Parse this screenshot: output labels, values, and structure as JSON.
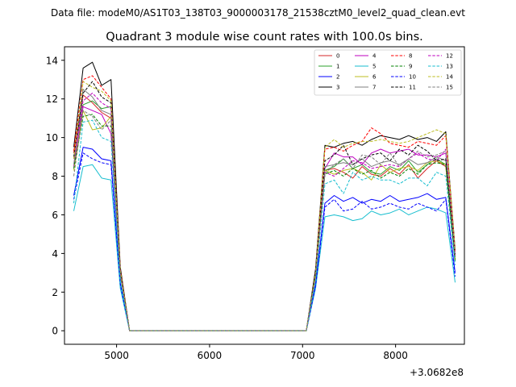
{
  "figure": {
    "suptitle": "Data file: modeM0/AS1T03_138T03_9000003178_21538cztM0_level2_quad_clean.evt"
  },
  "chart_data": {
    "type": "line",
    "title": "Quadrant 3 module wise count rates with 100.0s bins.",
    "xlabel": "",
    "ylabel": "",
    "x_offset_label": "+3.0682e8",
    "xlim": [
      4440,
      8740
    ],
    "ylim": [
      -0.7,
      14.7
    ],
    "x_ticks": [
      5000,
      6000,
      7000,
      8000
    ],
    "x_tick_labels": [
      "5000",
      "6000",
      "7000",
      "8000"
    ],
    "y_ticks": [
      0,
      2,
      4,
      6,
      8,
      10,
      12,
      14
    ],
    "y_tick_labels": [
      "0",
      "2",
      "4",
      "6",
      "8",
      "10",
      "12",
      "14"
    ],
    "grid": false,
    "legend_position": "top-right",
    "x": [
      4540,
      4640,
      4740,
      4840,
      4940,
      5040,
      5140,
      5240,
      5340,
      5440,
      5540,
      5640,
      5740,
      5840,
      5940,
      6040,
      6140,
      6240,
      6340,
      6440,
      6540,
      6640,
      6740,
      6840,
      6940,
      7040,
      7140,
      7240,
      7340,
      7440,
      7540,
      7640,
      7740,
      7840,
      7940,
      8040,
      8140,
      8240,
      8340,
      8440,
      8540,
      8640
    ],
    "series": [
      {
        "name": "0",
        "color": "#d62728",
        "dash": "solid",
        "values": [
          9.2,
          12.2,
          11.8,
          11.3,
          11.0,
          3.0,
          0,
          0,
          0,
          0,
          0,
          0,
          0,
          0,
          0,
          0,
          0,
          0,
          0,
          0,
          0,
          0,
          0,
          0,
          0,
          0,
          2.8,
          8.3,
          8.4,
          8.2,
          7.9,
          8.5,
          8.1,
          8.0,
          8.4,
          8.1,
          8.6,
          7.9,
          8.4,
          8.8,
          8.5,
          3.6
        ]
      },
      {
        "name": "1",
        "color": "#2ca02c",
        "dash": "solid",
        "values": [
          9.0,
          11.7,
          11.9,
          11.5,
          11.6,
          3.1,
          0,
          0,
          0,
          0,
          0,
          0,
          0,
          0,
          0,
          0,
          0,
          0,
          0,
          0,
          0,
          0,
          0,
          0,
          0,
          0,
          2.9,
          8.3,
          8.5,
          8.9,
          8.4,
          8.6,
          8.2,
          8.1,
          8.5,
          8.3,
          8.8,
          8.2,
          8.6,
          8.9,
          8.6,
          3.7
        ]
      },
      {
        "name": "2",
        "color": "#0000ff",
        "dash": "solid",
        "values": [
          7.0,
          9.5,
          9.4,
          8.9,
          8.8,
          2.5,
          0,
          0,
          0,
          0,
          0,
          0,
          0,
          0,
          0,
          0,
          0,
          0,
          0,
          0,
          0,
          0,
          0,
          0,
          0,
          0,
          2.4,
          6.6,
          7.0,
          6.7,
          6.9,
          6.6,
          6.8,
          6.7,
          7.0,
          6.7,
          6.8,
          6.9,
          7.1,
          6.8,
          6.9,
          3.0
        ]
      },
      {
        "name": "3",
        "color": "#000000",
        "dash": "solid",
        "values": [
          9.5,
          13.6,
          13.9,
          12.7,
          13.0,
          3.3,
          0,
          0,
          0,
          0,
          0,
          0,
          0,
          0,
          0,
          0,
          0,
          0,
          0,
          0,
          0,
          0,
          0,
          0,
          0,
          0,
          3.2,
          9.6,
          9.5,
          9.7,
          9.8,
          9.6,
          9.9,
          10.1,
          10.0,
          9.9,
          10.1,
          9.9,
          10.0,
          9.8,
          10.3,
          4.2
        ]
      },
      {
        "name": "4",
        "color": "#bf00bf",
        "dash": "solid",
        "values": [
          8.5,
          11.6,
          11.4,
          11.2,
          10.2,
          2.9,
          0,
          0,
          0,
          0,
          0,
          0,
          0,
          0,
          0,
          0,
          0,
          0,
          0,
          0,
          0,
          0,
          0,
          0,
          0,
          0,
          2.8,
          8.4,
          9.2,
          9.0,
          9.0,
          8.6,
          9.2,
          9.4,
          9.2,
          9.3,
          9.4,
          9.1,
          9.1,
          9.0,
          9.2,
          3.8
        ]
      },
      {
        "name": "5",
        "color": "#17becf",
        "dash": "solid",
        "values": [
          6.2,
          8.5,
          8.6,
          7.9,
          7.8,
          2.2,
          0,
          0,
          0,
          0,
          0,
          0,
          0,
          0,
          0,
          0,
          0,
          0,
          0,
          0,
          0,
          0,
          0,
          0,
          0,
          0,
          2.2,
          5.9,
          6.0,
          5.9,
          5.7,
          5.8,
          6.2,
          6.0,
          6.1,
          6.3,
          6.0,
          6.2,
          6.4,
          6.3,
          6.1,
          2.5
        ]
      },
      {
        "name": "6",
        "color": "#bcbd22",
        "dash": "solid",
        "values": [
          8.3,
          11.4,
          10.4,
          10.5,
          11.1,
          3.0,
          0,
          0,
          0,
          0,
          0,
          0,
          0,
          0,
          0,
          0,
          0,
          0,
          0,
          0,
          0,
          0,
          0,
          0,
          0,
          0,
          2.8,
          8.3,
          8.1,
          8.3,
          8.4,
          8.2,
          7.8,
          8.6,
          8.2,
          8.4,
          8.5,
          8.3,
          8.7,
          8.8,
          8.6,
          3.7
        ]
      },
      {
        "name": "7",
        "color": "#7f7f7f",
        "dash": "solid",
        "values": [
          8.6,
          12.5,
          12.1,
          11.4,
          11.2,
          3.0,
          0,
          0,
          0,
          0,
          0,
          0,
          0,
          0,
          0,
          0,
          0,
          0,
          0,
          0,
          0,
          0,
          0,
          0,
          0,
          0,
          2.9,
          8.5,
          8.6,
          8.7,
          8.6,
          8.9,
          8.5,
          8.7,
          8.8,
          8.6,
          8.9,
          8.6,
          8.7,
          9.0,
          8.8,
          3.8
        ]
      },
      {
        "name": "8",
        "color": "#ff0000",
        "dash": "dashed",
        "values": [
          9.3,
          13.0,
          13.2,
          12.6,
          12.0,
          3.2,
          0,
          0,
          0,
          0,
          0,
          0,
          0,
          0,
          0,
          0,
          0,
          0,
          0,
          0,
          0,
          0,
          0,
          0,
          0,
          0,
          3.0,
          9.4,
          9.5,
          9.3,
          9.6,
          9.8,
          10.5,
          10.2,
          9.7,
          9.6,
          9.5,
          9.8,
          9.7,
          9.6,
          10.1,
          4.1
        ]
      },
      {
        "name": "9",
        "color": "#008000",
        "dash": "dashed",
        "values": [
          8.4,
          11.1,
          11.2,
          10.6,
          10.6,
          2.9,
          0,
          0,
          0,
          0,
          0,
          0,
          0,
          0,
          0,
          0,
          0,
          0,
          0,
          0,
          0,
          0,
          0,
          0,
          0,
          0,
          2.8,
          8.1,
          8.3,
          8.0,
          8.4,
          8.1,
          8.3,
          7.9,
          8.2,
          8.0,
          8.4,
          8.1,
          8.6,
          8.7,
          8.6,
          3.6
        ]
      },
      {
        "name": "10",
        "color": "#0000ff",
        "dash": "dashed",
        "values": [
          6.8,
          9.2,
          8.9,
          8.7,
          8.6,
          2.4,
          0,
          0,
          0,
          0,
          0,
          0,
          0,
          0,
          0,
          0,
          0,
          0,
          0,
          0,
          0,
          0,
          0,
          0,
          0,
          0,
          2.3,
          6.4,
          6.8,
          6.2,
          6.3,
          6.7,
          6.3,
          6.4,
          6.6,
          6.4,
          6.3,
          6.6,
          6.4,
          6.2,
          6.8,
          2.8
        ]
      },
      {
        "name": "11",
        "color": "#000000",
        "dash": "dashed",
        "values": [
          9.0,
          12.3,
          12.9,
          12.1,
          11.8,
          3.1,
          0,
          0,
          0,
          0,
          0,
          0,
          0,
          0,
          0,
          0,
          0,
          0,
          0,
          0,
          0,
          0,
          0,
          0,
          0,
          0,
          3.0,
          8.8,
          9.1,
          9.6,
          8.6,
          8.9,
          9.1,
          9.2,
          8.8,
          9.4,
          9.1,
          9.6,
          9.3,
          8.8,
          8.9,
          3.9
        ]
      },
      {
        "name": "12",
        "color": "#bf00bf",
        "dash": "dashed",
        "values": [
          8.9,
          11.9,
          12.3,
          11.8,
          11.5,
          3.0,
          0,
          0,
          0,
          0,
          0,
          0,
          0,
          0,
          0,
          0,
          0,
          0,
          0,
          0,
          0,
          0,
          0,
          0,
          0,
          0,
          2.9,
          8.2,
          8.0,
          8.4,
          8.8,
          8.7,
          8.4,
          8.5,
          8.6,
          8.5,
          8.9,
          9.2,
          8.9,
          8.8,
          9.4,
          3.9
        ]
      },
      {
        "name": "13",
        "color": "#17becf",
        "dash": "dashed",
        "values": [
          6.6,
          10.8,
          10.9,
          10.0,
          9.8,
          2.6,
          0,
          0,
          0,
          0,
          0,
          0,
          0,
          0,
          0,
          0,
          0,
          0,
          0,
          0,
          0,
          0,
          0,
          0,
          0,
          0,
          2.6,
          7.6,
          7.8,
          7.1,
          8.2,
          7.8,
          8.0,
          7.8,
          7.8,
          7.6,
          7.9,
          7.9,
          7.5,
          8.2,
          8.0,
          3.4
        ]
      },
      {
        "name": "14",
        "color": "#bcbd22",
        "dash": "dashed",
        "values": [
          8.9,
          12.9,
          12.6,
          12.4,
          11.9,
          3.1,
          0,
          0,
          0,
          0,
          0,
          0,
          0,
          0,
          0,
          0,
          0,
          0,
          0,
          0,
          0,
          0,
          0,
          0,
          0,
          0,
          3.0,
          9.5,
          9.9,
          9.5,
          9.7,
          9.8,
          9.8,
          9.9,
          9.8,
          9.7,
          9.8,
          10.0,
          10.2,
          10.4,
          10.2,
          4.2
        ]
      },
      {
        "name": "15",
        "color": "#7f7f7f",
        "dash": "dashed",
        "values": [
          8.0,
          11.4,
          11.1,
          10.4,
          10.9,
          2.9,
          0,
          0,
          0,
          0,
          0,
          0,
          0,
          0,
          0,
          0,
          0,
          0,
          0,
          0,
          0,
          0,
          0,
          0,
          0,
          0,
          2.8,
          8.1,
          8.6,
          8.9,
          8.4,
          9.1,
          9.0,
          8.6,
          9.2,
          8.5,
          8.9,
          9.3,
          9.0,
          9.1,
          9.3,
          3.9
        ]
      }
    ]
  }
}
